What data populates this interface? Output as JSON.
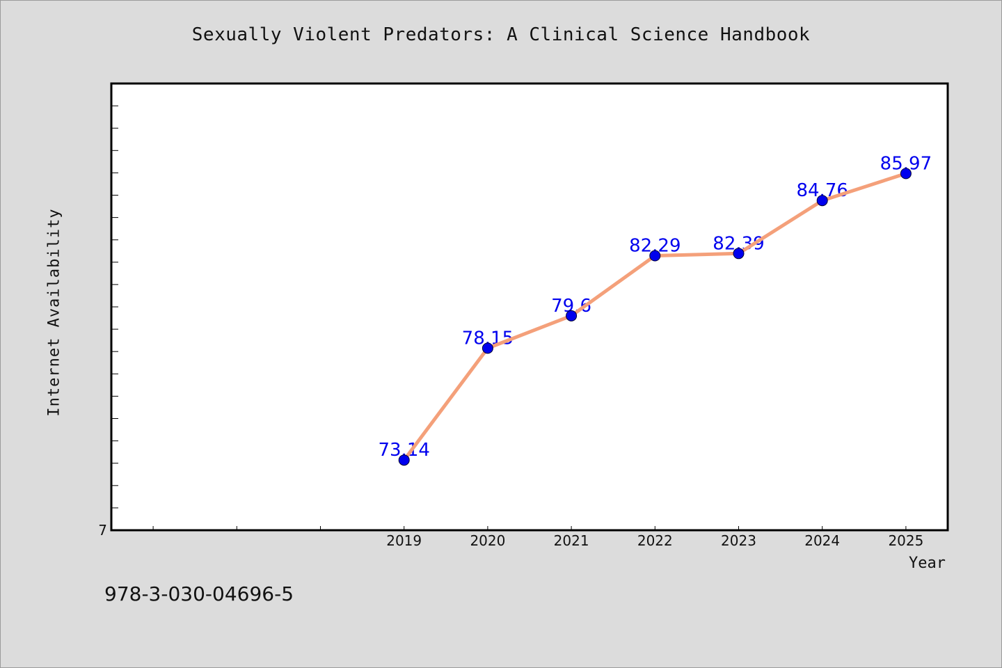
{
  "chart_data": {
    "type": "line",
    "title": "Sexually Violent Predators: A Clinical Science Handbook",
    "xlabel": "Year",
    "ylabel": "Internet Availability",
    "x": [
      2019,
      2020,
      2021,
      2022,
      2023,
      2024,
      2025
    ],
    "xlim": [
      2015.5,
      2025.5
    ],
    "ylim": [
      70,
      90
    ],
    "y_tick_labels_shown": [
      "7"
    ],
    "series": [
      {
        "values": [
          73.14,
          78.15,
          79.6,
          82.29,
          82.39,
          84.76,
          85.97
        ],
        "data_labels": [
          "73.14",
          "78.15",
          "79.6",
          "82.29",
          "82.39",
          "84.76",
          "85.97"
        ],
        "line_color": "#f4a07a",
        "marker_color": "#0000ee"
      }
    ],
    "grid": false,
    "legend": "none"
  },
  "footer": {
    "isbn": "978-3-030-04696-5"
  },
  "colors": {
    "background": "#dcdcdc",
    "plot_background": "#ffffff",
    "line": "#f4a07a",
    "marker": "#0000ee",
    "data_label": "#0000ee"
  }
}
